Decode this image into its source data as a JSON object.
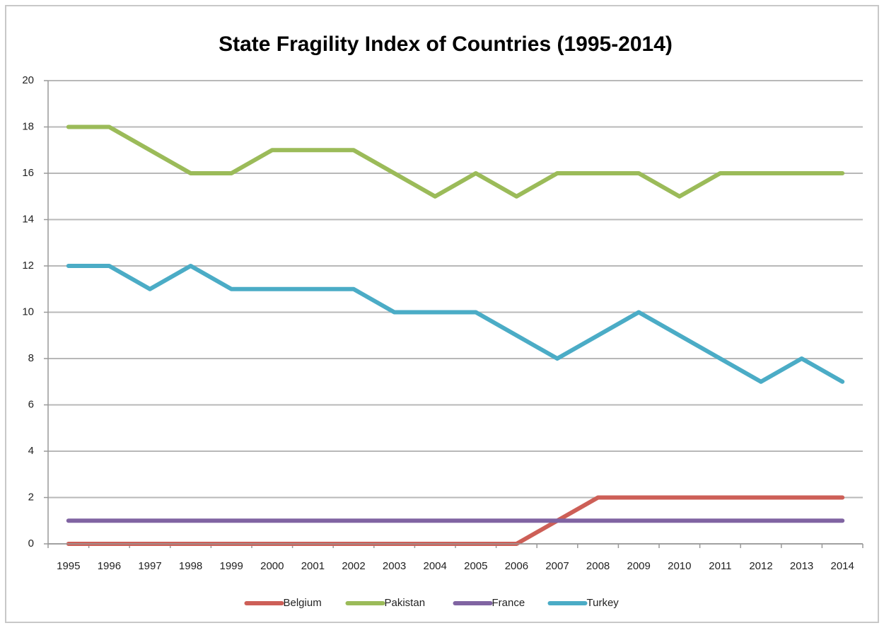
{
  "chart_data": {
    "type": "line",
    "title": "State Fragility Index of Countries (1995-2014)",
    "categories": [
      "1995",
      "1996",
      "1997",
      "1998",
      "1999",
      "2000",
      "2001",
      "2002",
      "2003",
      "2004",
      "2005",
      "2006",
      "2007",
      "2008",
      "2009",
      "2010",
      "2011",
      "2012",
      "2013",
      "2014"
    ],
    "series": [
      {
        "name": "Belgium",
        "color": "#cd5f57",
        "values": [
          0,
          0,
          0,
          0,
          0,
          0,
          0,
          0,
          0,
          0,
          0,
          0,
          1,
          2,
          2,
          2,
          2,
          2,
          2,
          2
        ]
      },
      {
        "name": "Pakistan",
        "color": "#9bbb59",
        "values": [
          18,
          18,
          17,
          16,
          16,
          17,
          17,
          17,
          16,
          15,
          16,
          15,
          16,
          16,
          16,
          15,
          16,
          16,
          16,
          16
        ]
      },
      {
        "name": "France",
        "color": "#8064a2",
        "values": [
          1,
          1,
          1,
          1,
          1,
          1,
          1,
          1,
          1,
          1,
          1,
          1,
          1,
          1,
          1,
          1,
          1,
          1,
          1,
          1
        ]
      },
      {
        "name": "Turkey",
        "color": "#4bacc6",
        "values": [
          12,
          12,
          11,
          12,
          11,
          11,
          11,
          11,
          10,
          10,
          10,
          9,
          8,
          9,
          10,
          9,
          8,
          7,
          8,
          7
        ]
      }
    ],
    "ylim": [
      0,
      20
    ],
    "yticks": [
      0,
      2,
      4,
      6,
      8,
      10,
      12,
      14,
      16,
      18,
      20
    ],
    "grid": true,
    "legend": "bottom"
  }
}
